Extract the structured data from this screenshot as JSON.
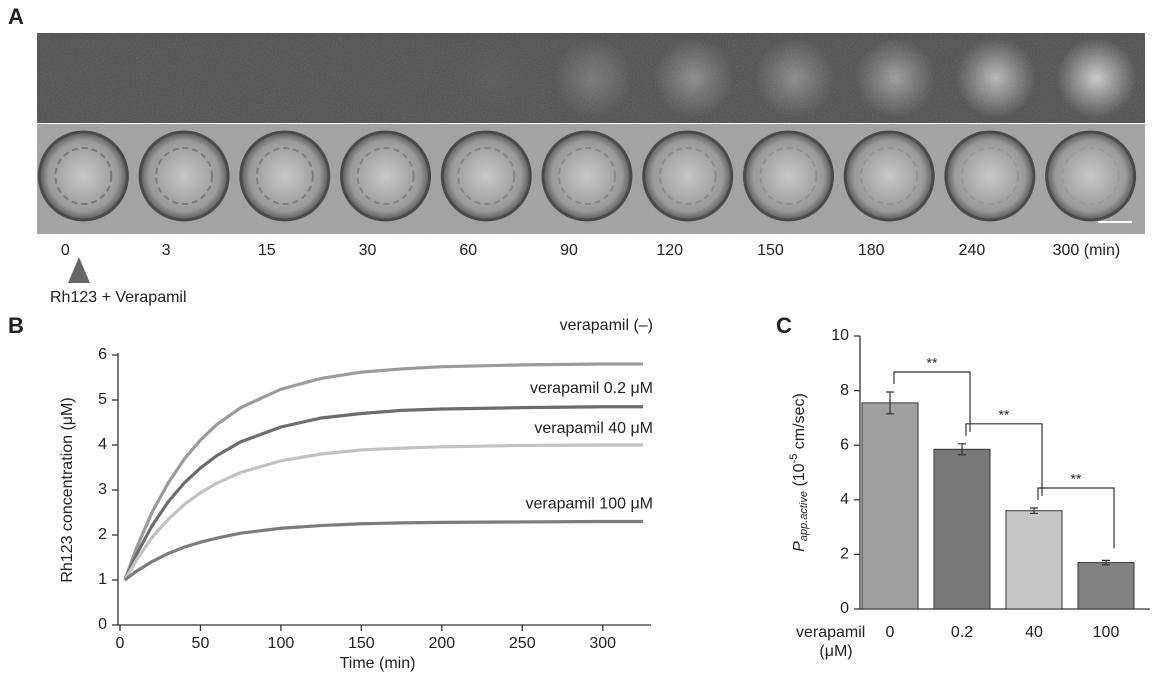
{
  "panel_a": {
    "label": "A",
    "times": [
      "0",
      "3",
      "15",
      "30",
      "60",
      "90",
      "120",
      "150",
      "180",
      "240",
      "300 (min)"
    ],
    "annotation": "Rh123 + Verapamil"
  },
  "chart_data": [
    {
      "type": "line",
      "panel_label": "B",
      "x_label": "Time (min)",
      "y_label": "Rh123 concentration (μM)",
      "x": [
        3,
        10,
        20,
        30,
        40,
        50,
        60,
        75,
        100,
        125,
        150,
        175,
        200,
        250,
        300,
        325
      ],
      "series": [
        {
          "name": "verapamil  (–)",
          "color": "#9b9b9b",
          "values": [
            1,
            1.69,
            2.51,
            3.16,
            3.69,
            4.11,
            4.45,
            4.83,
            5.24,
            5.48,
            5.62,
            5.69,
            5.74,
            5.78,
            5.8,
            5.8
          ]
        },
        {
          "name": "verapamil  0.2 μM",
          "color": "#6c6c6c",
          "values": [
            1,
            1.55,
            2.21,
            2.74,
            3.16,
            3.49,
            3.76,
            4.07,
            4.4,
            4.6,
            4.7,
            4.77,
            4.8,
            4.83,
            4.85,
            4.85
          ]
        },
        {
          "name": "verapamil  40 μM",
          "color": "#c2c2c2",
          "values": [
            1,
            1.43,
            1.95,
            2.35,
            2.68,
            2.94,
            3.15,
            3.39,
            3.65,
            3.8,
            3.89,
            3.93,
            3.96,
            3.99,
            4.0,
            4.0
          ]
        },
        {
          "name": "verapamil  100 μM",
          "color": "#7c7c7c",
          "values": [
            1,
            1.19,
            1.41,
            1.59,
            1.73,
            1.84,
            1.93,
            2.04,
            2.15,
            2.21,
            2.25,
            2.27,
            2.28,
            2.29,
            2.3,
            2.3
          ]
        }
      ],
      "xlim": [
        0,
        330
      ],
      "xticks": [
        0,
        50,
        100,
        150,
        200,
        250,
        300
      ],
      "ylim": [
        0,
        6
      ],
      "yticks": [
        0,
        1,
        2,
        3,
        4,
        5,
        6
      ]
    },
    {
      "type": "bar",
      "panel_label": "C",
      "y_label": {
        "symbol": "P",
        "subscript": "app.active",
        "unit_prefix": " (10",
        "exponent": "-5",
        "unit_suffix": " cm/sec)"
      },
      "x_label": [
        "verapamil",
        "(μM)"
      ],
      "categories": [
        "0",
        "0.2",
        "40",
        "100"
      ],
      "values": [
        7.55,
        5.85,
        3.6,
        1.7
      ],
      "errors": [
        0.4,
        0.2,
        0.1,
        0.08
      ],
      "colors": [
        "#a0a0a0",
        "#787878",
        "#c6c6c6",
        "#828282"
      ],
      "significance": [
        "**",
        "**",
        "**"
      ],
      "ylim": [
        0,
        10
      ],
      "yticks": [
        0,
        2,
        4,
        6,
        8,
        10
      ]
    }
  ]
}
